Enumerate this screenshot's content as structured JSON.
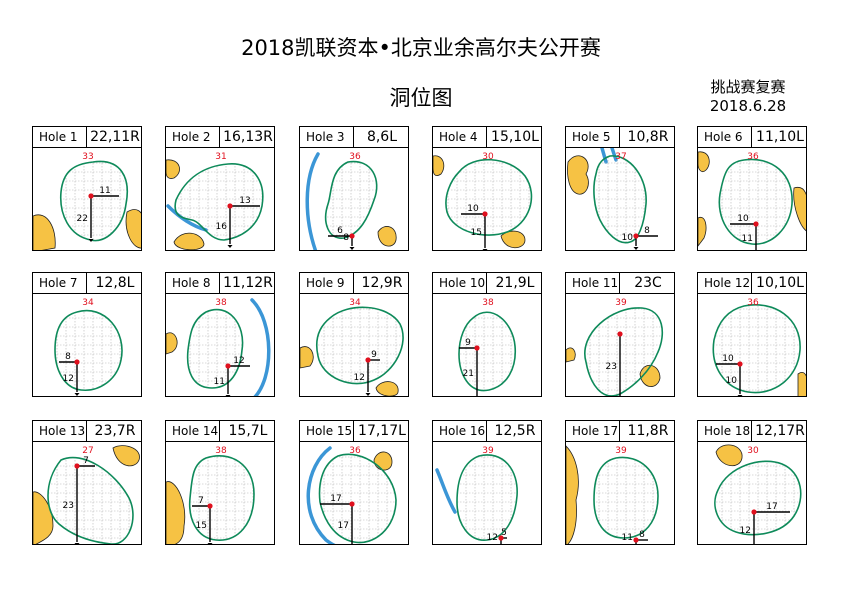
{
  "header": {
    "title": "2018凯联资本•北京业余高尔夫公开赛",
    "subtitle": "洞位图",
    "stage": "挑战赛复赛",
    "date": "2018.6.28"
  },
  "colors": {
    "green_outline": "#0e8a5a",
    "bunker": "#f6c244",
    "water": "#3b96d6",
    "pin": "#e0101e",
    "depth": "#e0101e",
    "grid": "#b5b5b5"
  },
  "holes": [
    {
      "name": "Hole 1",
      "pin": "22,11R",
      "depth": "33",
      "len": "22",
      "side": "11"
    },
    {
      "name": "Hole 2",
      "pin": "16,13R",
      "depth": "31",
      "len": "16",
      "side": "13"
    },
    {
      "name": "Hole 3",
      "pin": "8,6L",
      "depth": "36",
      "len": "8",
      "side": "6"
    },
    {
      "name": "Hole 4",
      "pin": "15,10L",
      "depth": "30",
      "len": "15",
      "side": "10"
    },
    {
      "name": "Hole 5",
      "pin": "10,8R",
      "depth": "37",
      "len": "10",
      "side": "8"
    },
    {
      "name": "Hole 6",
      "pin": "11,10L",
      "depth": "36",
      "len": "11",
      "side": "10"
    },
    {
      "name": "Hole 7",
      "pin": "12,8L",
      "depth": "34",
      "len": "12",
      "side": "8"
    },
    {
      "name": "Hole 8",
      "pin": "11,12R",
      "depth": "38",
      "len": "11",
      "side": "12"
    },
    {
      "name": "Hole 9",
      "pin": "12,9R",
      "depth": "34",
      "len": "12",
      "side": "9"
    },
    {
      "name": "Hole 10",
      "pin": "21,9L",
      "depth": "38",
      "len": "21",
      "side": "9"
    },
    {
      "name": "Hole 11",
      "pin": "23C",
      "depth": "39",
      "len": "23",
      "side": ""
    },
    {
      "name": "Hole 12",
      "pin": "10,10L",
      "depth": "36",
      "len": "10",
      "side": "10"
    },
    {
      "name": "Hole 13",
      "pin": "23,7R",
      "depth": "27",
      "len": "23",
      "side": "7"
    },
    {
      "name": "Hole 14",
      "pin": "15,7L",
      "depth": "38",
      "len": "15",
      "side": "7"
    },
    {
      "name": "Hole 15",
      "pin": "17,17L",
      "depth": "36",
      "len": "17",
      "side": "17"
    },
    {
      "name": "Hole 16",
      "pin": "12,5R",
      "depth": "39",
      "len": "12",
      "side": "5"
    },
    {
      "name": "Hole 17",
      "pin": "11,8R",
      "depth": "39",
      "len": "11",
      "side": "8"
    },
    {
      "name": "Hole 18",
      "pin": "12,17R",
      "depth": "30",
      "len": "12",
      "side": "17"
    }
  ]
}
